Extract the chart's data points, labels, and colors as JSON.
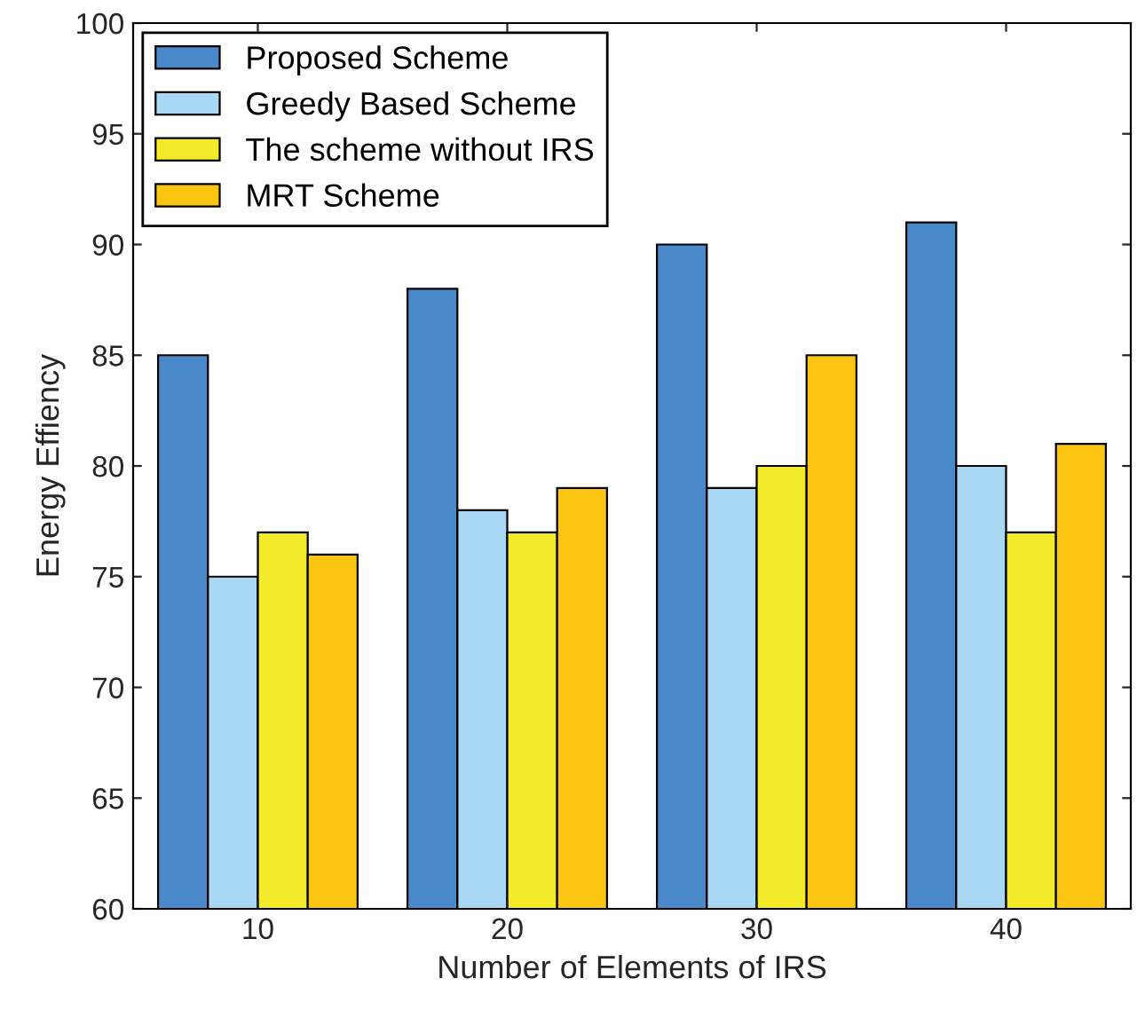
{
  "chart_data": {
    "type": "bar",
    "xlabel": "Number of Elements of IRS",
    "ylabel": "Energy Effiency",
    "categories": [
      "10",
      "20",
      "30",
      "40"
    ],
    "series": [
      {
        "name": "Proposed Scheme",
        "color": "#4a89c9",
        "values": [
          85,
          88,
          90,
          91
        ]
      },
      {
        "name": "Greedy Based Scheme",
        "color": "#a8d8f3",
        "values": [
          75,
          78,
          79,
          80
        ]
      },
      {
        "name": "The scheme without IRS",
        "color": "#f3eb2a",
        "values": [
          77,
          77,
          80,
          77
        ]
      },
      {
        "name": "MRT Scheme",
        "color": "#fcc511",
        "values": [
          76,
          79,
          85,
          81
        ]
      }
    ],
    "ylim": [
      60,
      100
    ],
    "yticks": [
      60,
      65,
      70,
      75,
      80,
      85,
      90,
      95,
      100
    ],
    "legend": "top left",
    "grid": false
  }
}
